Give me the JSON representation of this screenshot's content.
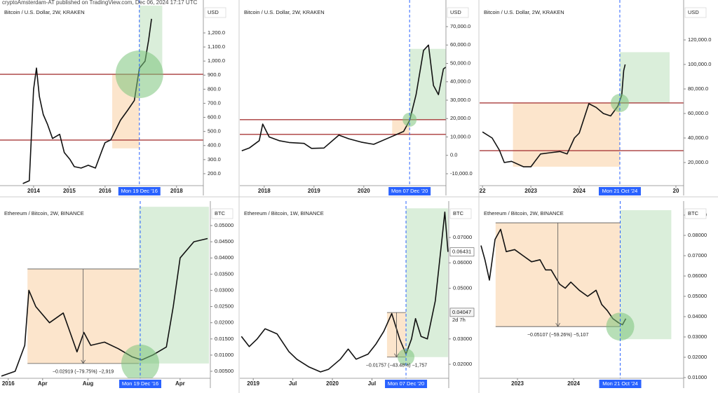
{
  "header": {
    "title": "cryptoAmsterdam-AT published on TradingView.com, Dec 06, 2024 17:17 UTC"
  },
  "chart_data": [
    {
      "type": "line",
      "title": "Bitcoin / U.S. Dollar, 2W, KRAKEN",
      "axis_unit": "USD",
      "color": "#111111",
      "x": [
        2013.7,
        2013.88,
        2014.0,
        2014.08,
        2014.16,
        2014.27,
        2014.39,
        2014.53,
        2014.73,
        2014.86,
        2015.02,
        2015.14,
        2015.33,
        2015.53,
        2015.73,
        2015.92,
        2016.0,
        2016.16,
        2016.43,
        2016.63,
        2016.82,
        2016.96,
        2017.12,
        2017.22,
        2017.3
      ],
      "values": [
        130,
        150,
        800,
        950,
        750,
        620,
        550,
        450,
        480,
        350,
        300,
        250,
        240,
        260,
        240,
        370,
        420,
        440,
        580,
        650,
        720,
        950,
        1000,
        1150,
        1300
      ],
      "xlim": [
        2013.06,
        2018.75
      ],
      "xticks": [
        2014,
        2015,
        2016,
        2018
      ],
      "ylim": [
        115,
        1394
      ],
      "yticks": [
        {
          "value": 200,
          "label": "200.0"
        },
        {
          "value": 300,
          "label": "300.0"
        },
        {
          "value": 400,
          "label": "400.0"
        },
        {
          "value": 500,
          "label": "500.0"
        },
        {
          "value": 600,
          "label": "600.0"
        },
        {
          "value": 700,
          "label": "700.0"
        },
        {
          "value": 800,
          "label": "800.0"
        },
        {
          "value": 900,
          "label": "900.0"
        },
        {
          "value": 1000,
          "label": "1,000.0"
        },
        {
          "value": 1100,
          "label": "1,100.0"
        },
        {
          "value": 1200,
          "label": "1,200.0"
        }
      ],
      "highlight": {
        "value": 2016.96,
        "label": "Mon 19 Dec '16"
      },
      "levels": [
        {
          "value": 906,
          "color": "#a83a3a"
        },
        {
          "value": 439,
          "color": "#a83a3a"
        }
      ],
      "zones": [
        {
          "x": [
            2016.2,
            2016.96
          ],
          "y": [
            380,
            906
          ],
          "color": "#fbe0c3"
        },
        {
          "x": [
            2016.96,
            2017.6
          ],
          "y": [
            906,
            1394
          ],
          "color": "#d3ebd3"
        }
      ]
    },
    {
      "type": "line",
      "title": "Bitcoin / U.S. Dollar, 2W, KRAKEN",
      "axis_unit": "USD",
      "color": "#111111",
      "x": [
        2017.55,
        2017.7,
        2017.9,
        2017.97,
        2018.1,
        2018.3,
        2018.5,
        2018.8,
        2018.95,
        2019.2,
        2019.5,
        2019.7,
        2019.95,
        2020.2,
        2020.5,
        2020.8,
        2020.92,
        2021.05,
        2021.2,
        2021.3,
        2021.4,
        2021.5,
        2021.6,
        2021.65
      ],
      "values": [
        2500,
        4000,
        8000,
        17000,
        10000,
        8000,
        7000,
        6500,
        3800,
        4000,
        11000,
        9000,
        7200,
        6000,
        9500,
        13000,
        19000,
        33000,
        57000,
        60000,
        38000,
        33000,
        47000,
        48000
      ],
      "xlim": [
        2017.51,
        2021.65
      ],
      "xticks": [
        2018,
        2019,
        2020
      ],
      "ylim": [
        -16476,
        81430
      ],
      "yticks": [
        {
          "value": -10000,
          "label": "-10,000.0"
        },
        {
          "value": 0,
          "label": "0.0"
        },
        {
          "value": 10000,
          "label": "10,000.0"
        },
        {
          "value": 20000,
          "label": "20,000.0"
        },
        {
          "value": 30000,
          "label": "30,000.0"
        },
        {
          "value": 40000,
          "label": "40,000.0"
        },
        {
          "value": 50000,
          "label": "50,000.0"
        },
        {
          "value": 60000,
          "label": "60,000.0"
        },
        {
          "value": 70000,
          "label": "70,000.0"
        }
      ],
      "highlight": {
        "value": 2020.92,
        "label": "Mon 07 Dec '20"
      },
      "levels": [
        {
          "value": 19400,
          "color": "#a83a3a"
        },
        {
          "value": 11400,
          "color": "#a83a3a"
        }
      ],
      "zones": [
        {
          "x": [
            2020.57,
            2020.92
          ],
          "y": [
            11400,
            19400
          ],
          "color": "#fbe0c3"
        },
        {
          "x": [
            2020.92,
            2021.65
          ],
          "y": [
            19400,
            57900
          ],
          "color": "#d3ebd3"
        }
      ]
    },
    {
      "type": "line",
      "title": "Bitcoin / U.S. Dollar, 2W, KRAKEN",
      "axis_unit": "USD",
      "color": "#111111",
      "x": [
        2022.0,
        2022.2,
        2022.35,
        2022.45,
        2022.6,
        2022.85,
        2023.0,
        2023.2,
        2023.4,
        2023.6,
        2023.75,
        2023.9,
        2024.0,
        2024.2,
        2024.35,
        2024.5,
        2024.65,
        2024.8,
        2024.88,
        2024.92,
        2024.95
      ],
      "values": [
        45000,
        40000,
        30000,
        20000,
        21000,
        16500,
        16500,
        27000,
        28000,
        29000,
        27000,
        40000,
        44000,
        68000,
        65000,
        60000,
        58000,
        66000,
        75000,
        95000,
        100000
      ],
      "xlim": [
        2021.94,
        2026.16
      ],
      "xticks": [
        {
          "value": 2022,
          "label": "22"
        },
        2023,
        2024,
        {
          "value": 2026,
          "label": "20"
        }
      ],
      "ylim": [
        1143,
        148000
      ],
      "yticks": [
        {
          "value": 20000,
          "label": "20,000.0"
        },
        {
          "value": 40000,
          "label": "40,000.0"
        },
        {
          "value": 60000,
          "label": "60,000.0"
        },
        {
          "value": 80000,
          "label": "80,000.0"
        },
        {
          "value": 100000,
          "label": "100,000.0"
        },
        {
          "value": 120000,
          "label": "120,000.0"
        }
      ],
      "highlight": {
        "value": 2024.84,
        "label": "Mon 21 Oct '24"
      },
      "levels": [
        {
          "value": 68600,
          "color": "#a83a3a"
        },
        {
          "value": 29700,
          "color": "#a83a3a"
        }
      ],
      "zones": [
        {
          "x": [
            2022.63,
            2024.84
          ],
          "y": [
            16600,
            68600
          ],
          "color": "#fbe0c3"
        },
        {
          "x": [
            2024.84,
            2025.87
          ],
          "y": [
            68600,
            110000
          ],
          "color": "#d3ebd3"
        }
      ]
    },
    {
      "type": "line",
      "title": "Ethereum / Bitcoin, 2W, BINANCE",
      "axis_unit": "BTC",
      "color": "#111111",
      "x": [
        2015.95,
        2016.05,
        2016.12,
        2016.15,
        2016.2,
        2016.3,
        2016.4,
        2016.45,
        2016.5,
        2016.55,
        2016.6,
        2016.7,
        2016.8,
        2016.9,
        2016.97,
        2017.05,
        2017.15,
        2017.2,
        2017.25,
        2017.35,
        2017.45
      ],
      "values": [
        0.0035,
        0.005,
        0.013,
        0.03,
        0.025,
        0.02,
        0.023,
        0.017,
        0.011,
        0.017,
        0.013,
        0.014,
        0.012,
        0.0095,
        0.0085,
        0.01,
        0.0125,
        0.025,
        0.04,
        0.045,
        0.046
      ],
      "xlim": [
        2015.94,
        2017.47
      ],
      "xticks": [
        2016,
        {
          "value": 2016.25,
          "label": "Apr"
        },
        {
          "value": 2016.58,
          "label": "Aug"
        },
        {
          "value": 2017.25,
          "label": "Apr"
        }
      ],
      "ylim": [
        0.00284,
        0.05584
      ],
      "yticks": [
        {
          "value": 0.005,
          "label": "0.00500"
        },
        {
          "value": 0.01,
          "label": "0.01000"
        },
        {
          "value": 0.015,
          "label": "0.01500"
        },
        {
          "value": 0.02,
          "label": "0.02000"
        },
        {
          "value": 0.025,
          "label": "0.02500"
        },
        {
          "value": 0.03,
          "label": "0.03000"
        },
        {
          "value": 0.035,
          "label": "0.03500"
        },
        {
          "value": 0.04,
          "label": "0.04000"
        },
        {
          "value": 0.045,
          "label": "0.04500"
        },
        {
          "value": 0.05,
          "label": "0.05000"
        }
      ],
      "highlight": {
        "value": 2016.96,
        "label": "Mon 19 Dec '16"
      },
      "measure": {
        "top": 0.0366,
        "bottom": 0.00741,
        "label": "−0.02919 (−79.75%) −2,919"
      },
      "zones": [
        {
          "x": [
            2016.14,
            2016.95
          ],
          "y": [
            0.00741,
            0.0366
          ],
          "color": "#fbe0c3"
        },
        {
          "x": [
            2016.95,
            2017.46
          ],
          "y": [
            0.00741,
            0.0558
          ],
          "color": "#d3ebd3"
        }
      ]
    },
    {
      "type": "line",
      "title": "Ethereum / Bitcoin, 1W, BINANCE",
      "axis_unit": "BTC",
      "color": "#111111",
      "x": [
        2018.85,
        2018.95,
        2019.05,
        2019.15,
        2019.3,
        2019.45,
        2019.55,
        2019.7,
        2019.85,
        2019.95,
        2020.1,
        2020.2,
        2020.3,
        2020.45,
        2020.55,
        2020.65,
        2020.75,
        2020.85,
        2020.93,
        2021.0,
        2021.05,
        2021.12,
        2021.2,
        2021.3,
        2021.38,
        2021.42,
        2021.46
      ],
      "values": [
        0.031,
        0.027,
        0.03,
        0.034,
        0.032,
        0.025,
        0.022,
        0.019,
        0.017,
        0.018,
        0.022,
        0.026,
        0.022,
        0.024,
        0.028,
        0.033,
        0.04,
        0.03,
        0.024,
        0.03,
        0.038,
        0.031,
        0.03,
        0.045,
        0.068,
        0.08,
        0.06431
      ],
      "xlim": [
        2018.83,
        2021.47
      ],
      "xticks": [
        2019,
        {
          "value": 2019.5,
          "label": "Jul"
        },
        2020,
        {
          "value": 2020.5,
          "label": "Jul"
        }
      ],
      "ylim": [
        0.01448,
        0.08215
      ],
      "yticks": [
        {
          "value": 0.02,
          "label": "0.02000"
        },
        {
          "value": 0.03,
          "label": "0.03000"
        },
        {
          "value": 0.05,
          "label": "0.05000"
        },
        {
          "value": 0.06,
          "label": "0.06000"
        },
        {
          "value": 0.07,
          "label": "0.07000"
        }
      ],
      "price_labels": [
        0.06431,
        0.04047
      ],
      "countdown": "2d 7h",
      "highlight": {
        "value": 2020.93,
        "label": "Mon 07 Dec '20"
      },
      "measure": {
        "top": 0.04041,
        "bottom": 0.02284,
        "label": "−0.01757 (−43.48%) −1,757"
      },
      "zones": [
        {
          "x": [
            2020.69,
            2020.93
          ],
          "y": [
            0.02284,
            0.04041
          ],
          "color": "#fbe0c3"
        },
        {
          "x": [
            2020.93,
            2021.46
          ],
          "y": [
            0.02284,
            0.0815
          ],
          "color": "#d3ebd3"
        }
      ]
    },
    {
      "type": "line",
      "title": "Ethereum / Bitcoin, 2W, BINANCE",
      "axis_unit": "BTC",
      "color": "#111111",
      "x": [
        2022.35,
        2022.42,
        2022.5,
        2022.6,
        2022.7,
        2022.8,
        2022.95,
        2023.1,
        2023.25,
        2023.4,
        2023.5,
        2023.6,
        2023.75,
        2023.85,
        2023.95,
        2024.1,
        2024.25,
        2024.4,
        2024.5,
        2024.6,
        2024.7,
        2024.8,
        2024.87,
        2024.93
      ],
      "values": [
        0.075,
        0.068,
        0.058,
        0.078,
        0.083,
        0.072,
        0.073,
        0.07,
        0.067,
        0.068,
        0.063,
        0.063,
        0.056,
        0.054,
        0.057,
        0.053,
        0.05,
        0.053,
        0.046,
        0.043,
        0.039,
        0.037,
        0.036,
        0.039
      ],
      "xlim": [
        2022.325,
        2025.96
      ],
      "xticks": [
        2023,
        2024
      ],
      "ylim": [
        0.00966,
        0.09414
      ],
      "yticks": [
        {
          "value": 0.01,
          "label": "0.01000"
        },
        {
          "value": 0.02,
          "label": "0.02000"
        },
        {
          "value": 0.03,
          "label": "0.03000"
        },
        {
          "value": 0.04,
          "label": "0.04000"
        },
        {
          "value": 0.05,
          "label": "0.05000"
        },
        {
          "value": 0.06,
          "label": "0.06000"
        },
        {
          "value": 0.07,
          "label": "0.07000"
        },
        {
          "value": 0.08,
          "label": "0.08000"
        },
        {
          "value": 0.09,
          "label": "0.09000"
        }
      ],
      "highlight": {
        "value": 2024.83,
        "label": "Mon 21 Oct '24"
      },
      "measure": {
        "top": 0.08618,
        "bottom": 0.03511,
        "label": "−0.05107 (−59.26%) −5,107"
      },
      "zones": [
        {
          "x": [
            2022.61,
            2024.83
          ],
          "y": [
            0.03511,
            0.08618
          ],
          "color": "#fbe0c3"
        },
        {
          "x": [
            2024.83,
            2025.74
          ],
          "y": [
            0.0289,
            0.0924
          ],
          "color": "#d3ebd3"
        }
      ]
    }
  ]
}
